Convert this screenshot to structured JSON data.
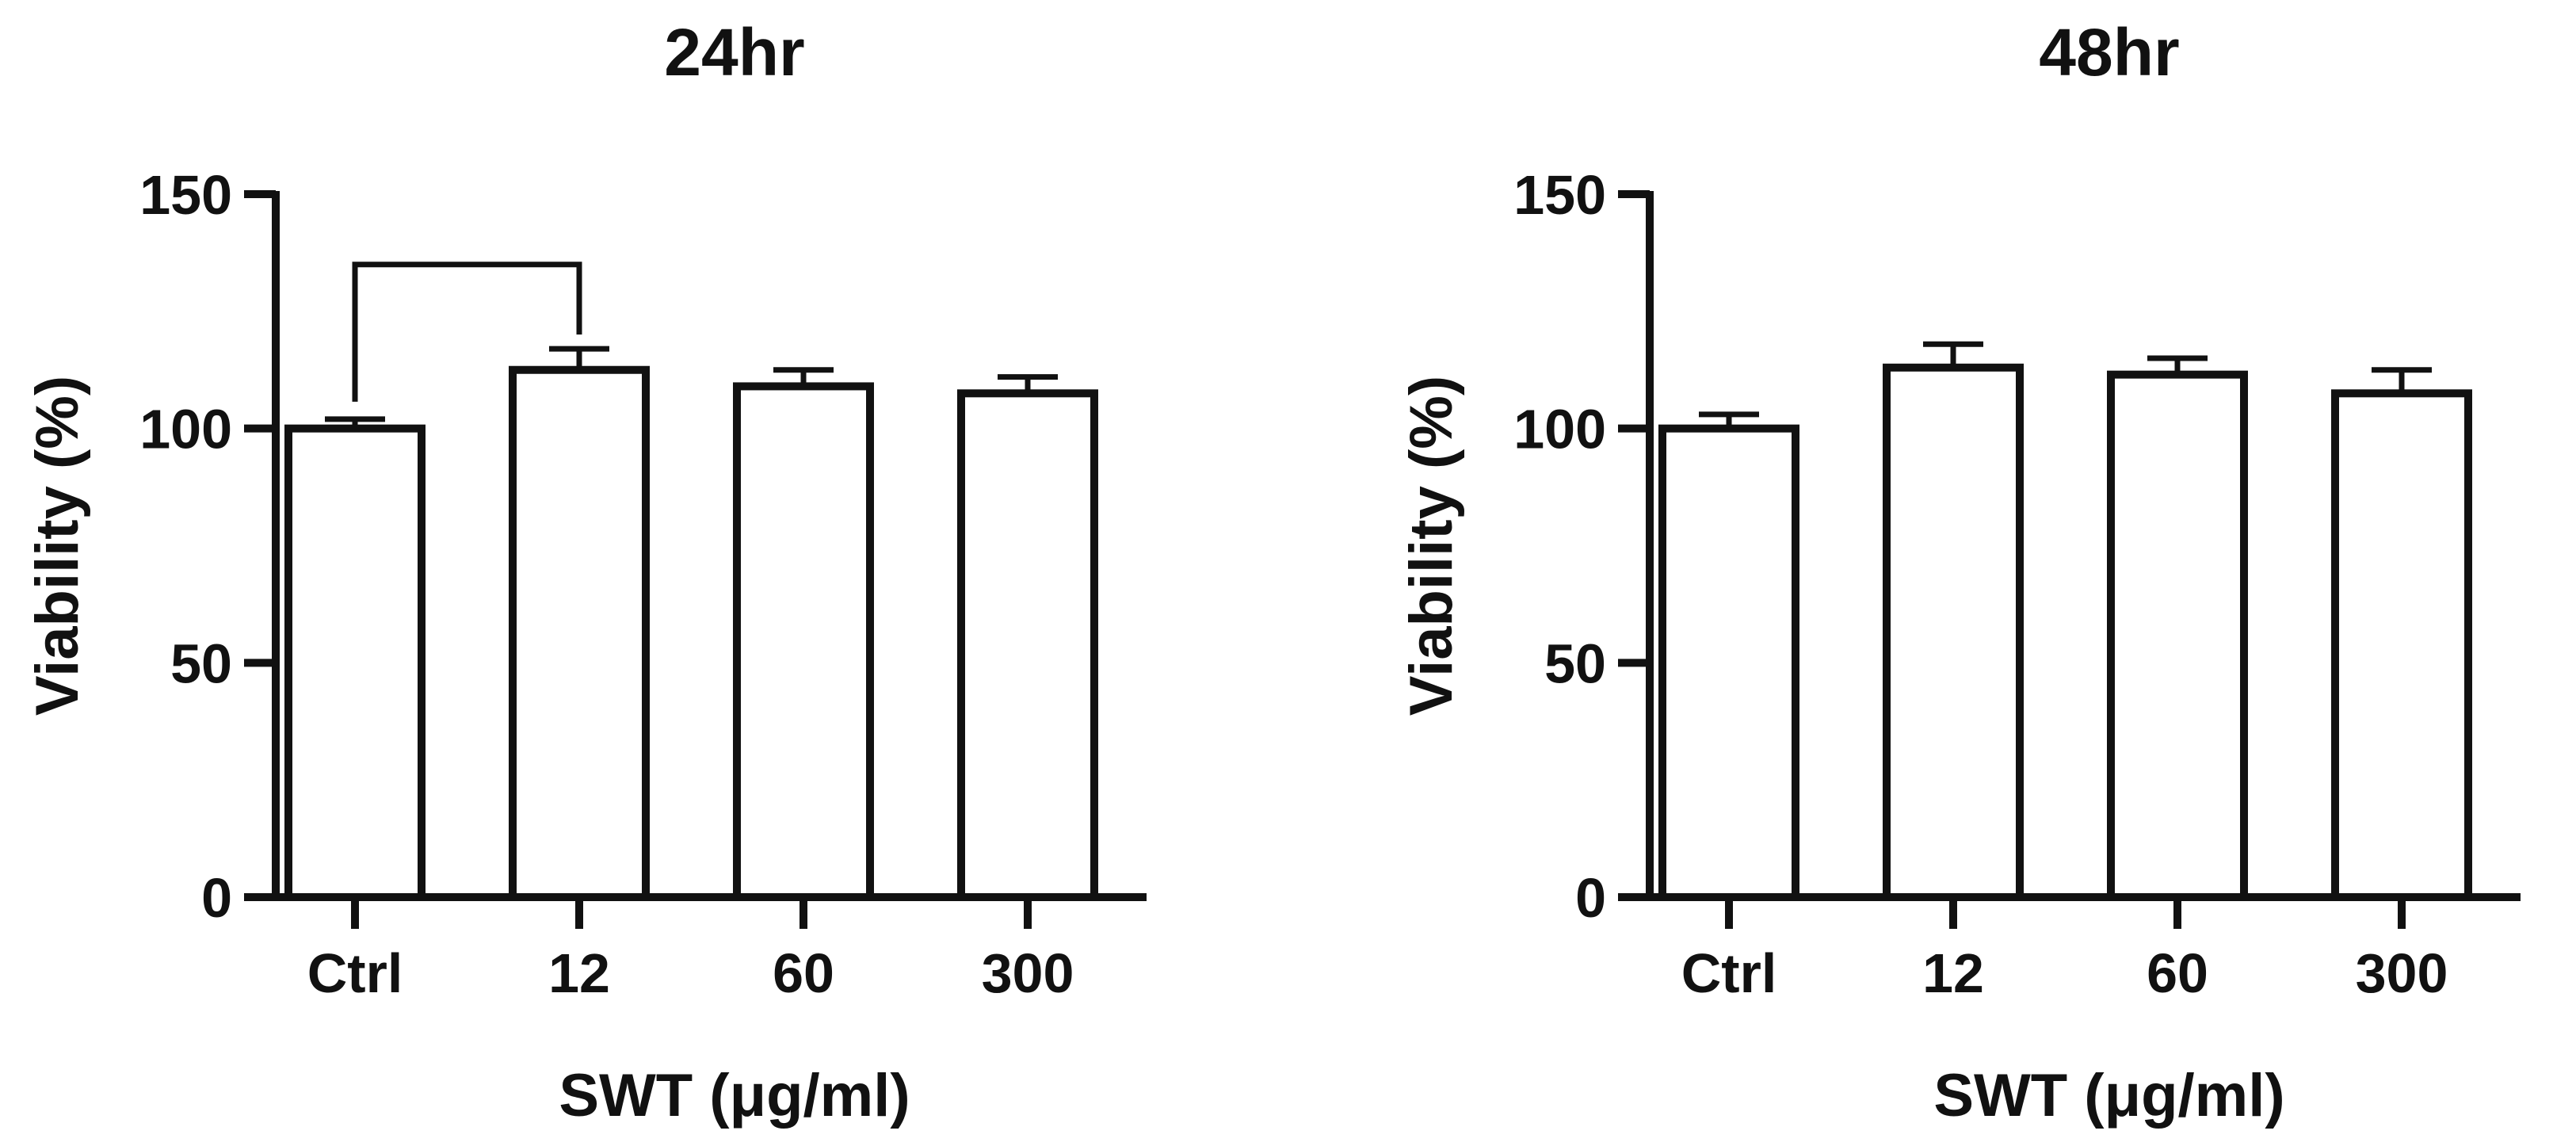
{
  "chart_data": [
    {
      "type": "bar",
      "title": "24hr",
      "xlabel": "SWT (μg/ml)",
      "ylabel": "Viability (%)",
      "categories": [
        "Ctrl",
        "12",
        "60",
        "300"
      ],
      "values": [
        100,
        112.5,
        109,
        107.5
      ],
      "errors": [
        2,
        4.5,
        3.5,
        3.5
      ],
      "ylim": [
        0,
        150
      ],
      "yticks": [
        0,
        50,
        100,
        150
      ],
      "grid": false,
      "legend": "none",
      "annotations": [
        {
          "type": "significance-bracket",
          "from": "Ctrl",
          "to": "12",
          "y": 135
        }
      ]
    },
    {
      "type": "bar",
      "title": "48hr",
      "xlabel": "SWT (μg/ml)",
      "ylabel": "Viability (%)",
      "categories": [
        "Ctrl",
        "12",
        "60",
        "300"
      ],
      "values": [
        100,
        113,
        111.5,
        107.5
      ],
      "errors": [
        3,
        5,
        3.5,
        5
      ],
      "ylim": [
        0,
        150
      ],
      "yticks": [
        0,
        50,
        100,
        150
      ],
      "grid": false,
      "legend": "none",
      "annotations": []
    }
  ]
}
